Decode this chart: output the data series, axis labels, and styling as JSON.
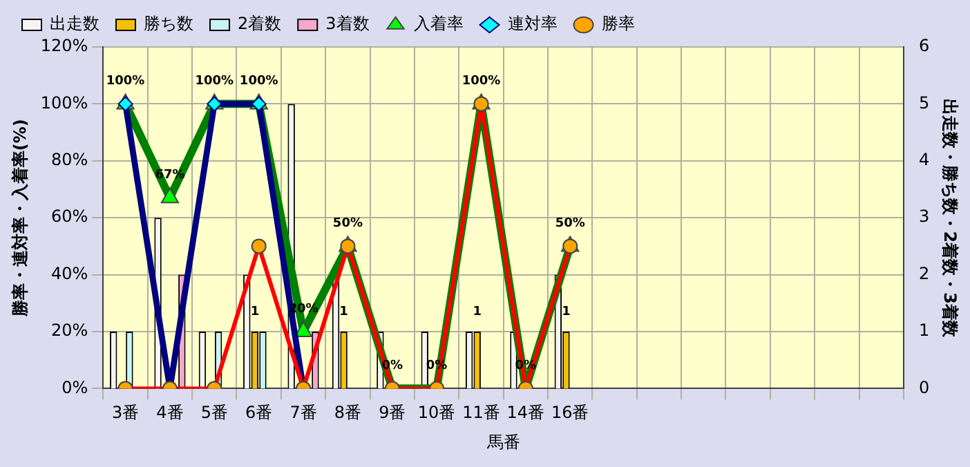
{
  "chart_data": {
    "type": "bar",
    "xlabel": "馬番",
    "ylabel": "勝率・連対率・入着率(%)",
    "y2label": "出走数・勝ち数・2着数・3着数",
    "categories": [
      "3番",
      "4番",
      "5番",
      "6番",
      "7番",
      "8番",
      "9番",
      "10番",
      "11番",
      "14番",
      "16番",
      null,
      null,
      null,
      null,
      null,
      null,
      null
    ],
    "series": [
      {
        "name": "出走数",
        "axis": "y2",
        "color": "#f4f4f4",
        "values": [
          1,
          3,
          1,
          2,
          5,
          2,
          1,
          1,
          1,
          1,
          2,
          null,
          null,
          null,
          null,
          null,
          null,
          null
        ]
      },
      {
        "name": "勝ち数",
        "axis": "y2",
        "color": "#f5c000",
        "values": [
          0,
          0,
          0,
          1,
          0,
          1,
          0,
          0,
          1,
          0,
          1,
          null,
          null,
          null,
          null,
          null,
          null,
          null
        ],
        "value_labels": [
          null,
          null,
          null,
          "1",
          null,
          "1",
          null,
          null,
          "1",
          null,
          "1",
          null,
          null,
          null,
          null,
          null,
          null,
          null
        ]
      },
      {
        "name": "2着数",
        "axis": "y2",
        "color": "#c8f4f4",
        "values": [
          1,
          0,
          1,
          1,
          0,
          0,
          0,
          0,
          0,
          0,
          0,
          null,
          null,
          null,
          null,
          null,
          null,
          null
        ]
      },
      {
        "name": "3着数",
        "axis": "y2",
        "color": "#f4a8cc",
        "values": [
          0,
          2,
          0,
          0,
          1,
          0,
          0,
          0,
          0,
          0,
          0,
          null,
          null,
          null,
          null,
          null,
          null,
          null
        ]
      },
      {
        "name": "入着率",
        "type": "line",
        "marker": "triangle",
        "color": "#008000",
        "values": [
          100,
          67,
          100,
          100,
          20,
          50,
          0,
          0,
          100,
          0,
          50,
          null,
          null,
          null,
          null,
          null,
          null,
          null
        ],
        "value_labels": [
          "100%",
          "67%",
          "100%",
          "100%",
          "20%",
          "50%",
          "0%",
          "0%",
          "100%",
          "0%",
          "50%",
          null,
          null,
          null,
          null,
          null,
          null,
          null
        ]
      },
      {
        "name": "連対率",
        "type": "line",
        "marker": "diamond",
        "color": "#000080",
        "values": [
          100,
          0,
          100,
          100,
          0,
          null,
          null,
          null,
          null,
          null,
          null,
          null,
          null,
          null,
          null,
          null,
          null,
          null
        ]
      },
      {
        "name": "勝率",
        "type": "line",
        "marker": "circle",
        "color": "#ff0000",
        "values": [
          0,
          0,
          0,
          50,
          0,
          50,
          0,
          0,
          100,
          0,
          50,
          null,
          null,
          null,
          null,
          null,
          null,
          null
        ]
      }
    ],
    "ylim": [
      0,
      120
    ],
    "yticks": [
      {
        "value": 0,
        "label": "0%"
      },
      {
        "value": 20,
        "label": "20%"
      },
      {
        "value": 40,
        "label": "40%"
      },
      {
        "value": 60,
        "label": "60%"
      },
      {
        "value": 80,
        "label": "80%"
      },
      {
        "value": 100,
        "label": "100%"
      },
      {
        "value": 120,
        "label": "120%"
      }
    ],
    "y2lim": [
      0,
      6
    ],
    "y2ticks": [
      0,
      1,
      2,
      3,
      4,
      5,
      6
    ],
    "grid": true,
    "legend": "top"
  }
}
